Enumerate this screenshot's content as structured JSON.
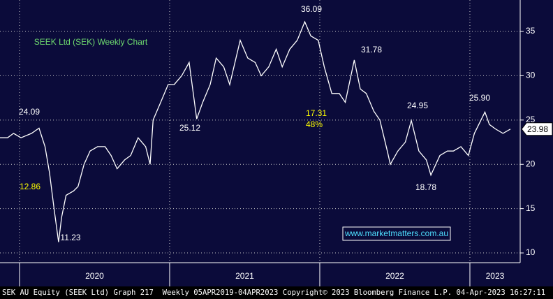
{
  "chart_data": {
    "type": "line",
    "title": "SEEK Ltd (SEK) Weekly Chart",
    "x": [
      2019.87,
      2019.92,
      2019.96,
      2020.01,
      2020.08,
      2020.13,
      2020.17,
      2020.2,
      2020.23,
      2020.26,
      2020.28,
      2020.31,
      2020.36,
      2020.39,
      2020.43,
      2020.47,
      2020.52,
      2020.57,
      2020.61,
      2020.65,
      2020.7,
      2020.74,
      2020.79,
      2020.84,
      2020.87,
      2020.89,
      2020.94,
      2020.99,
      2021.03,
      2021.08,
      2021.13,
      2021.18,
      2021.22,
      2021.27,
      2021.31,
      2021.36,
      2021.4,
      2021.47,
      2021.52,
      2021.57,
      2021.61,
      2021.66,
      2021.71,
      2021.75,
      2021.8,
      2021.85,
      2021.9,
      2021.94,
      2021.99,
      2022.03,
      2022.08,
      2022.13,
      2022.17,
      2022.23,
      2022.27,
      2022.31,
      2022.36,
      2022.4,
      2022.45,
      2022.47,
      2022.52,
      2022.57,
      2022.61,
      2022.66,
      2022.71,
      2022.74,
      2022.8,
      2022.85,
      2022.89,
      2022.94,
      2022.99,
      2023.03,
      2023.1,
      2023.13,
      2023.17,
      2023.22,
      2023.27
    ],
    "values": [
      23,
      23,
      23.5,
      23,
      23.5,
      24.09,
      22,
      19,
      15,
      11.23,
      14,
      16.5,
      17,
      17.5,
      20,
      21.5,
      22,
      22,
      21,
      19.5,
      20.5,
      21,
      23,
      22,
      20,
      25,
      27,
      29,
      29,
      30,
      31.5,
      25.12,
      27,
      29,
      32,
      31,
      29,
      34,
      32,
      31.5,
      30,
      31,
      33,
      31,
      33,
      34,
      36.09,
      34.5,
      34,
      31,
      28,
      28,
      27,
      31.78,
      28.5,
      28,
      26,
      25,
      21.5,
      20,
      21.5,
      22.5,
      24.95,
      21.5,
      20.5,
      18.78,
      21,
      21.5,
      21.5,
      22,
      21,
      23.5,
      25.9,
      24.5,
      24,
      23.5,
      23.98
    ],
    "color": "#ffffff",
    "xlim": [
      2019.87,
      2023.335
    ],
    "xticks": [
      {
        "value": 2020,
        "label": "2020"
      },
      {
        "value": 2021,
        "label": "2021"
      },
      {
        "value": 2022,
        "label": "2022"
      },
      {
        "value": 2023,
        "label": "2023"
      }
    ],
    "ylim": [
      8.9,
      38.55
    ],
    "yticks": [
      10,
      15,
      20,
      25,
      30,
      35
    ],
    "grid": true,
    "last_price": 23.98,
    "annotations": [
      {
        "text": "36.09",
        "color": "#ffffff"
      },
      {
        "text": "31.78",
        "color": "#ffffff"
      },
      {
        "text": "24.95",
        "color": "#ffffff"
      },
      {
        "text": "25.90",
        "color": "#ffffff"
      },
      {
        "text": "24.09",
        "color": "#ffffff"
      },
      {
        "text": "25.12",
        "color": "#ffffff"
      },
      {
        "text": "11.23",
        "color": "#ffffff"
      },
      {
        "text": "18.78",
        "color": "#ffffff"
      },
      {
        "text": "12.86",
        "color": "#ffff00"
      },
      {
        "text": "17.31",
        "color": "#ffff00"
      },
      {
        "text": "48%",
        "color": "#ffff00"
      }
    ],
    "website": "www.marketmatters.com.au",
    "footer": "SEK AU Equity (SEEK Ltd) Graph 217  Weekly 05APR2019-04APR2023 Copyright© 2023 Bloomberg Finance L.P. 04-Apr-2023 16:27:11"
  }
}
